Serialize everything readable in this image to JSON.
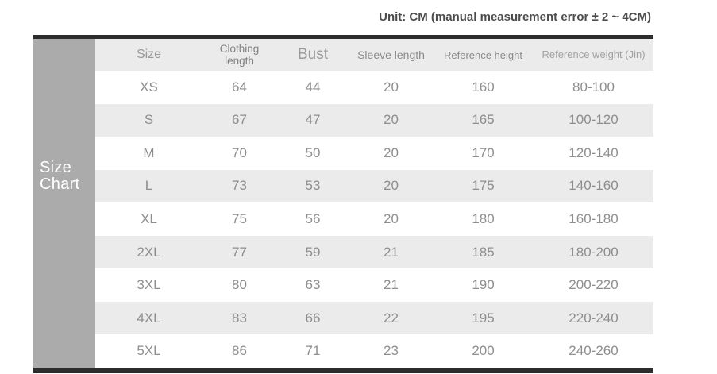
{
  "unit_note": "Unit: CM (manual measurement error ± 2 ~ 4CM)",
  "side_label": {
    "line1": "Size",
    "line2": "Chart"
  },
  "colors": {
    "frame_bar": "#2d2d2d",
    "side_block": "#ababab",
    "stripe": "#ebebeb",
    "value_text": "#8e8e8e",
    "title_text": "#4d4d4d"
  },
  "chart_data": {
    "type": "table",
    "title": "Size Chart",
    "unit_note": "Unit: CM (manual measurement error ± 2 ~ 4CM)",
    "columns": [
      "Size",
      "Clothing length",
      "Bust",
      "Sleeve length",
      "Reference height",
      "Reference weight (Jin)"
    ],
    "rows": [
      [
        "XS",
        "64",
        "44",
        "20",
        "160",
        "80-100"
      ],
      [
        "S",
        "67",
        "47",
        "20",
        "165",
        "100-120"
      ],
      [
        "M",
        "70",
        "50",
        "20",
        "170",
        "120-140"
      ],
      [
        "L",
        "73",
        "53",
        "20",
        "175",
        "140-160"
      ],
      [
        "XL",
        "75",
        "56",
        "20",
        "180",
        "160-180"
      ],
      [
        "2XL",
        "77",
        "59",
        "21",
        "185",
        "180-200"
      ],
      [
        "3XL",
        "80",
        "63",
        "21",
        "190",
        "200-220"
      ],
      [
        "4XL",
        "83",
        "66",
        "22",
        "195",
        "220-240"
      ],
      [
        "5XL",
        "86",
        "71",
        "23",
        "200",
        "240-260"
      ]
    ]
  }
}
